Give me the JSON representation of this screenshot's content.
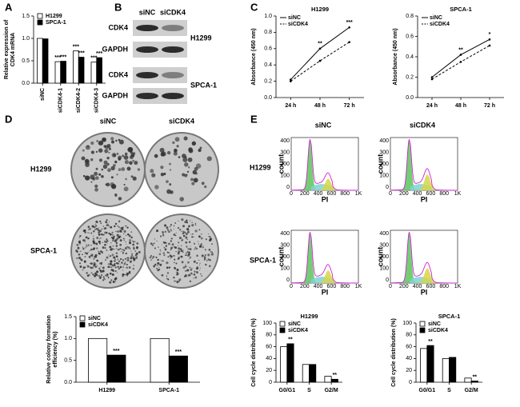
{
  "chart_data": [
    {
      "type": "bar",
      "panel": "A",
      "ylabel": [
        "Relative expression of",
        "CDK4 mRNA"
      ],
      "categories": [
        "siNC",
        "siCDK4-1",
        "siCDK4-2",
        "siCDK4-3"
      ],
      "series": [
        {
          "name": "H1299",
          "color": "#ffffff",
          "values": [
            1.0,
            0.48,
            0.72,
            0.47
          ],
          "marks": [
            null,
            "***",
            "***",
            "***"
          ]
        },
        {
          "name": "SPCA-1",
          "color": "#000000",
          "values": [
            0.99,
            0.49,
            0.58,
            0.57
          ],
          "marks": [
            null,
            "***",
            "***",
            "***"
          ]
        }
      ],
      "ylim": [
        0,
        1.5
      ],
      "yticks": [
        {
          "value": 0,
          "label": "0.0"
        },
        {
          "value": 0.5,
          "label": "0.5"
        },
        {
          "value": 1,
          "label": "1.0"
        },
        {
          "value": 1.5,
          "label": "1.5"
        }
      ]
    },
    {
      "type": "line",
      "panel": "C",
      "title": "H1299",
      "ylabel": "Absorbance (450 nm)",
      "categories": [
        "24 h",
        "48 h",
        "72 h"
      ],
      "series": [
        {
          "name": "siNC",
          "color": "#000000",
          "dash": false,
          "values": [
            0.22,
            0.6,
            0.86
          ]
        },
        {
          "name": "siCDK4",
          "color": "#000000",
          "dash": true,
          "values": [
            0.2,
            0.45,
            0.68
          ]
        }
      ],
      "significance": [
        null,
        "**",
        "***"
      ],
      "ylim": [
        0,
        1
      ],
      "yticks": [
        {
          "value": 0,
          "label": "0.0"
        },
        {
          "value": 0.2,
          "label": "0.2"
        },
        {
          "value": 0.4,
          "label": "0.4"
        },
        {
          "value": 0.6,
          "label": "0.6"
        },
        {
          "value": 0.8,
          "label": "0.8"
        },
        {
          "value": 1,
          "label": "1.0"
        }
      ]
    },
    {
      "type": "line",
      "title": "SPCA-1",
      "ylabel": "Absorbance (450 nm)",
      "categories": [
        "24 h",
        "48 h",
        "72 h"
      ],
      "series": [
        {
          "name": "siNC",
          "color": "#000000",
          "dash": false,
          "values": [
            0.2,
            0.42,
            0.57
          ]
        },
        {
          "name": "siCDK4",
          "color": "#000000",
          "dash": true,
          "values": [
            0.18,
            0.35,
            0.51
          ]
        }
      ],
      "significance": [
        null,
        "**",
        "*"
      ],
      "ylim": [
        0,
        0.8
      ],
      "yticks": [
        {
          "value": 0,
          "label": "0.0"
        },
        {
          "value": 0.2,
          "label": "0.2"
        },
        {
          "value": 0.4,
          "label": "0.4"
        },
        {
          "value": 0.6,
          "label": "0.6"
        },
        {
          "value": 0.8,
          "label": "0.8"
        }
      ]
    },
    {
      "type": "bar",
      "ylabel": [
        "Relative colony formation",
        "efficiency (%)"
      ],
      "categories": [
        "H1299",
        "SPCA-1"
      ],
      "series": [
        {
          "name": "siNC",
          "color": "#ffffff",
          "values": [
            1.0,
            1.0
          ],
          "marks": [
            null,
            null
          ]
        },
        {
          "name": "siCDK4",
          "color": "#000000",
          "values": [
            0.62,
            0.6
          ],
          "marks": [
            "***",
            "***"
          ]
        }
      ],
      "ylim": [
        0,
        1.5
      ],
      "yticks": [
        {
          "value": 0,
          "label": "0.0"
        },
        {
          "value": 0.5,
          "label": "0.5"
        },
        {
          "value": 1,
          "label": "1.0"
        },
        {
          "value": 1.5,
          "label": "1.5"
        }
      ]
    },
    {
      "type": "bar",
      "title": "H1299",
      "ylabel": "Cell cycle distribution (%)",
      "categories": [
        "G0/G1",
        "S",
        "G2/M"
      ],
      "series": [
        {
          "name": "siNC",
          "color": "#ffffff",
          "values": [
            60,
            30,
            10
          ],
          "marks": [
            null,
            null,
            null
          ]
        },
        {
          "name": "siCDK4",
          "color": "#000000",
          "values": [
            65,
            30,
            5
          ],
          "marks": [
            "**",
            null,
            "**"
          ]
        }
      ],
      "ylim": [
        0,
        100
      ],
      "yticks": [
        0,
        20,
        40,
        60,
        80,
        100
      ]
    },
    {
      "type": "bar",
      "title": "SPCA-1",
      "ylabel": "Cell cycle distribution (%)",
      "categories": [
        "G0/G1",
        "S",
        "G2/M"
      ],
      "series": [
        {
          "name": "siNC",
          "color": "#ffffff",
          "values": [
            57,
            40,
            7
          ],
          "marks": [
            null,
            null,
            null
          ]
        },
        {
          "name": "siCDK4",
          "color": "#000000",
          "values": [
            62,
            42,
            2
          ],
          "marks": [
            "**",
            null,
            "**"
          ]
        }
      ],
      "ylim": [
        0,
        100
      ],
      "yticks": [
        0,
        20,
        40,
        60,
        80,
        100
      ]
    }
  ],
  "blot": {
    "panel": "B",
    "columns": [
      "siNC",
      "siCDK4"
    ],
    "rows": [
      "CDK4",
      "GAPDH",
      "CDK4",
      "GAPDH"
    ],
    "groups": [
      "H1299",
      "SPCA-1"
    ]
  },
  "colony": {
    "panel": "D",
    "columns": [
      "siNC",
      "siCDK4"
    ],
    "rows": [
      "H1299",
      "SPCA-1"
    ]
  },
  "flow": {
    "panel": "E",
    "columns": [
      "siNC",
      "siCDK4"
    ],
    "rows": [
      "H1299",
      "SPCA-1"
    ],
    "ylabel": "count",
    "xlabel": "PI",
    "yticks": [
      "400",
      "300",
      "200",
      "100",
      "0"
    ],
    "xticks": [
      "0",
      "200",
      "400",
      "600",
      "800",
      "1K"
    ]
  }
}
